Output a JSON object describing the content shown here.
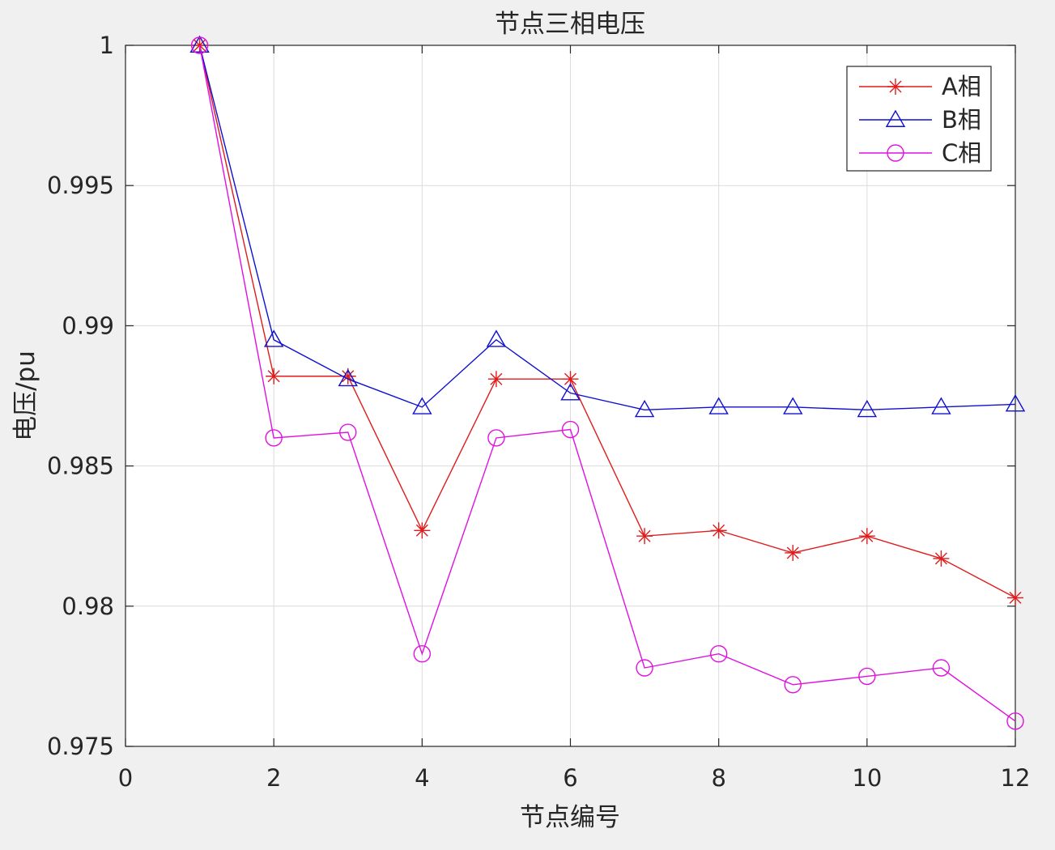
{
  "chart_data": {
    "type": "line",
    "title": "节点三相电压",
    "xlabel": "节点编号",
    "ylabel": "电压/pu",
    "xlim": [
      0,
      12
    ],
    "ylim": [
      0.975,
      1
    ],
    "xticks": [
      "0",
      "2",
      "4",
      "6",
      "8",
      "10",
      "12"
    ],
    "yticks": [
      "0.975",
      "0.98",
      "0.985",
      "0.99",
      "0.995",
      "1"
    ],
    "grid": true,
    "legend_position": "top-right",
    "x": [
      1,
      2,
      3,
      4,
      5,
      6,
      7,
      8,
      9,
      10,
      11,
      12
    ],
    "series": [
      {
        "name": "A相",
        "color": "#e01b1b",
        "marker": "asterisk",
        "values": [
          1.0,
          0.9882,
          0.9882,
          0.9827,
          0.9881,
          0.9881,
          0.9825,
          0.9827,
          0.9819,
          0.9825,
          0.9817,
          0.9803
        ]
      },
      {
        "name": "B相",
        "color": "#1010d0",
        "marker": "triangle",
        "values": [
          1.0,
          0.9895,
          0.9881,
          0.9871,
          0.9895,
          0.9876,
          0.987,
          0.9871,
          0.9871,
          0.987,
          0.9871,
          0.9872
        ]
      },
      {
        "name": "C相",
        "color": "#e010e0",
        "marker": "circle",
        "values": [
          1.0,
          0.986,
          0.9862,
          0.9783,
          0.986,
          0.9863,
          0.9778,
          0.9783,
          0.9772,
          0.9775,
          0.9778,
          0.9759
        ]
      }
    ]
  }
}
